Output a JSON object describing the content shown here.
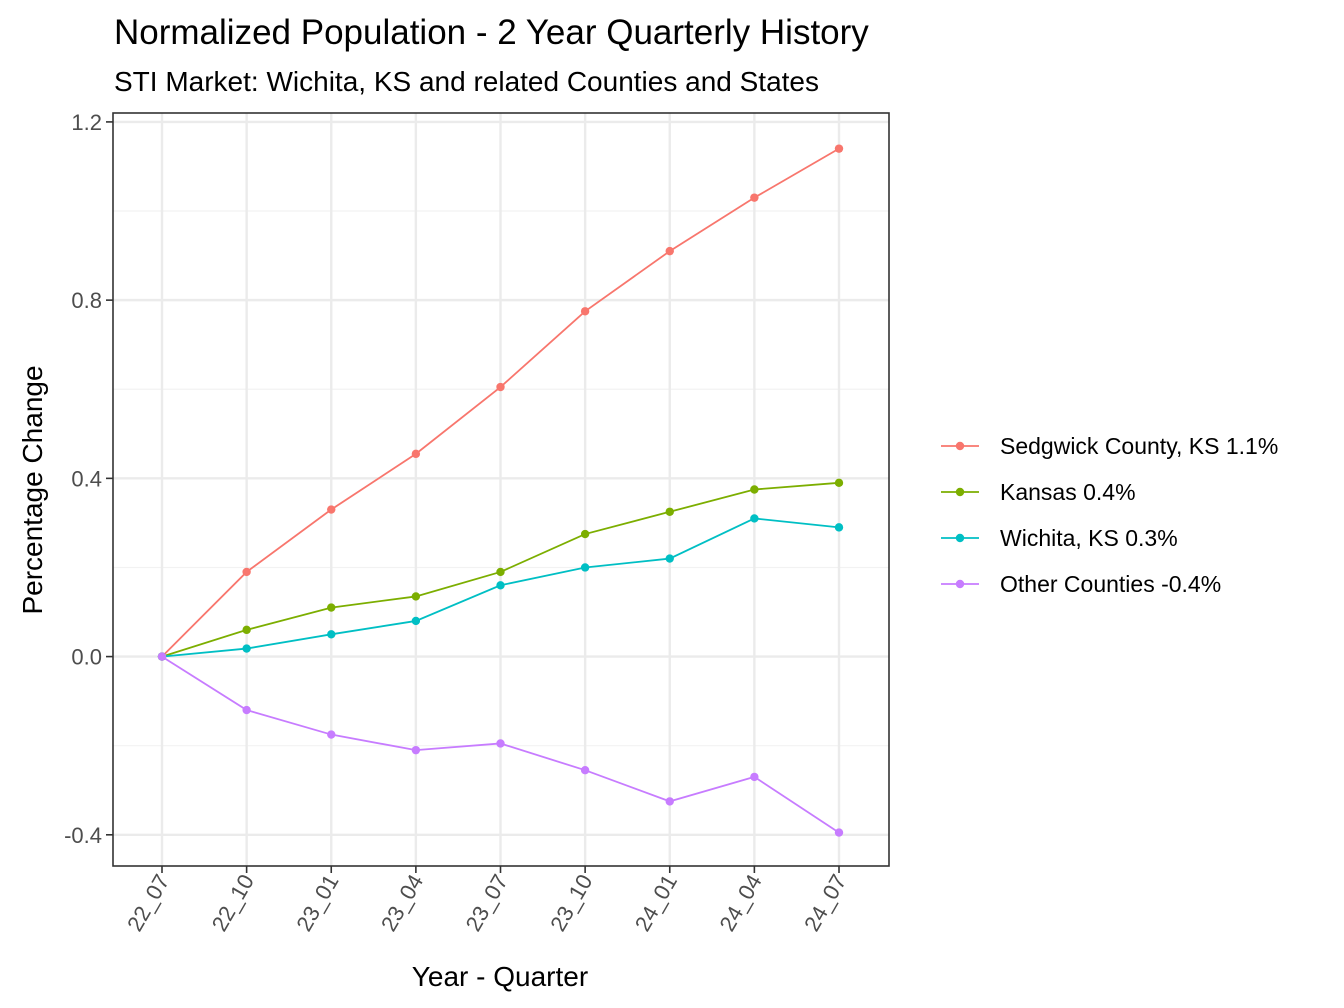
{
  "chart_data": {
    "type": "line",
    "title": "Normalized Population - 2 Year Quarterly History",
    "subtitle": "STI Market: Wichita, KS and related Counties and States",
    "xlabel": "Year - Quarter",
    "ylabel": "Percentage Change",
    "categories": [
      "22_07",
      "22_10",
      "23_01",
      "23_04",
      "23_07",
      "23_10",
      "24_01",
      "24_04",
      "24_07"
    ],
    "ylim": [
      -0.47,
      1.22
    ],
    "yticks": [
      -0.4,
      0.0,
      0.4,
      0.8,
      1.2
    ],
    "ytick_labels": [
      "-0.4",
      "0.0",
      "0.4",
      "0.8",
      "1.2"
    ],
    "grid": true,
    "legend_position": "right",
    "series": [
      {
        "name": "Sedgwick County, KS 1.1%",
        "color": "#F8766D",
        "values": [
          0.0,
          0.19,
          0.33,
          0.455,
          0.605,
          0.775,
          0.91,
          1.03,
          1.14
        ]
      },
      {
        "name": "Kansas 0.4%",
        "color": "#7CAE00",
        "values": [
          0.0,
          0.06,
          0.11,
          0.135,
          0.19,
          0.275,
          0.325,
          0.375,
          0.39
        ]
      },
      {
        "name": "Wichita, KS 0.3%",
        "color": "#00BFC4",
        "values": [
          0.0,
          0.018,
          0.05,
          0.08,
          0.16,
          0.2,
          0.22,
          0.31,
          0.29
        ]
      },
      {
        "name": "Other Counties -0.4%",
        "color": "#C77CFF",
        "values": [
          0.0,
          -0.12,
          -0.175,
          -0.21,
          -0.195,
          -0.255,
          -0.325,
          -0.27,
          -0.395
        ]
      }
    ]
  }
}
